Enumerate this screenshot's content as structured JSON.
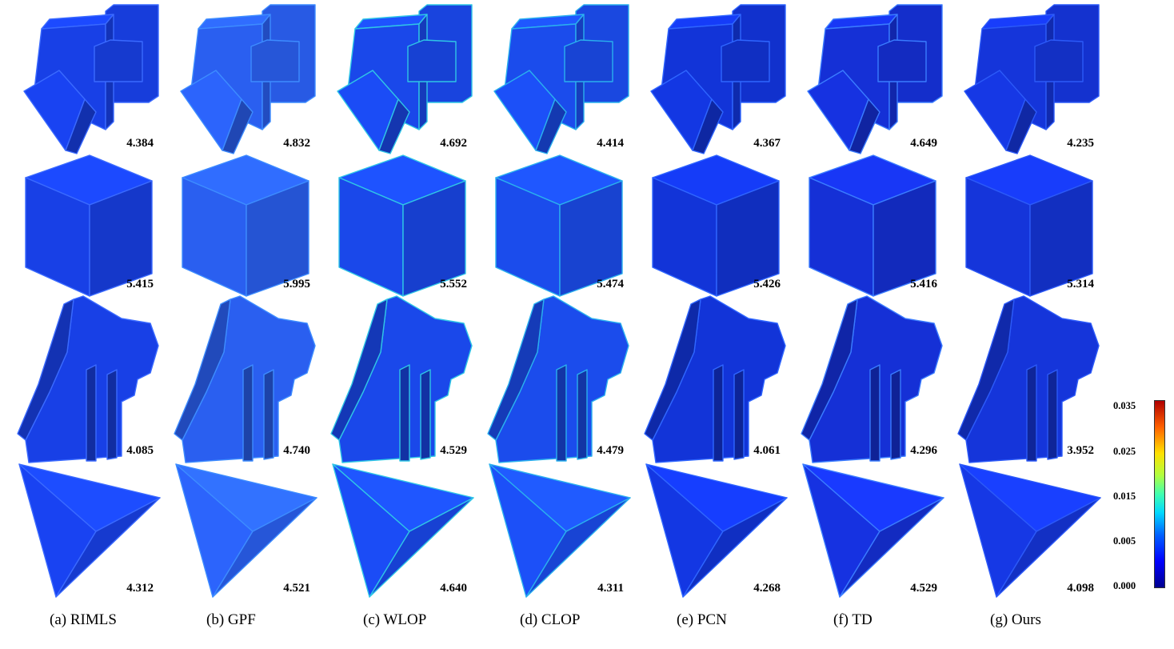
{
  "methods": [
    {
      "caption": "(a) RIMLS",
      "color": "#1840e6",
      "speckle": "#3a6aff"
    },
    {
      "caption": "(b) GPF",
      "color": "#2a5ff0",
      "speckle": "#3d8cff"
    },
    {
      "caption": "(c) WLOP",
      "color": "#1a48ea",
      "speckle": "#2fc6e6"
    },
    {
      "caption": "(d) CLOP",
      "color": "#1b4cec",
      "speckle": "#2ab0ee"
    },
    {
      "caption": "(e) PCN",
      "color": "#1234d8",
      "speckle": "#2f66ff"
    },
    {
      "caption": "(f) TD",
      "color": "#1530d6",
      "speckle": "#3a7cff"
    },
    {
      "caption": "(g) Ours",
      "color": "#1535da",
      "speckle": "#2c5af8"
    }
  ],
  "rows": [
    {
      "shape": "block",
      "scores": [
        "4.384",
        "4.832",
        "4.692",
        "4.414",
        "4.367",
        "4.649",
        "4.235"
      ]
    },
    {
      "shape": "cube",
      "scores": [
        "5.415",
        "5.995",
        "5.552",
        "5.474",
        "5.426",
        "5.416",
        "5.314"
      ]
    },
    {
      "shape": "fandisk",
      "scores": [
        "4.085",
        "4.740",
        "4.529",
        "4.479",
        "4.061",
        "4.296",
        "3.952"
      ]
    },
    {
      "shape": "pyramid",
      "scores": [
        "4.312",
        "4.521",
        "4.640",
        "4.311",
        "4.268",
        "4.529",
        "4.098"
      ]
    }
  ],
  "colorbar": {
    "ticks": [
      "0.035",
      "0.025",
      "0.015",
      "0.005",
      "0.000"
    ],
    "colors": [
      "#00008f",
      "#0000ff",
      "#00d8ff",
      "#b0ff40",
      "#ffe000",
      "#b00000"
    ]
  }
}
